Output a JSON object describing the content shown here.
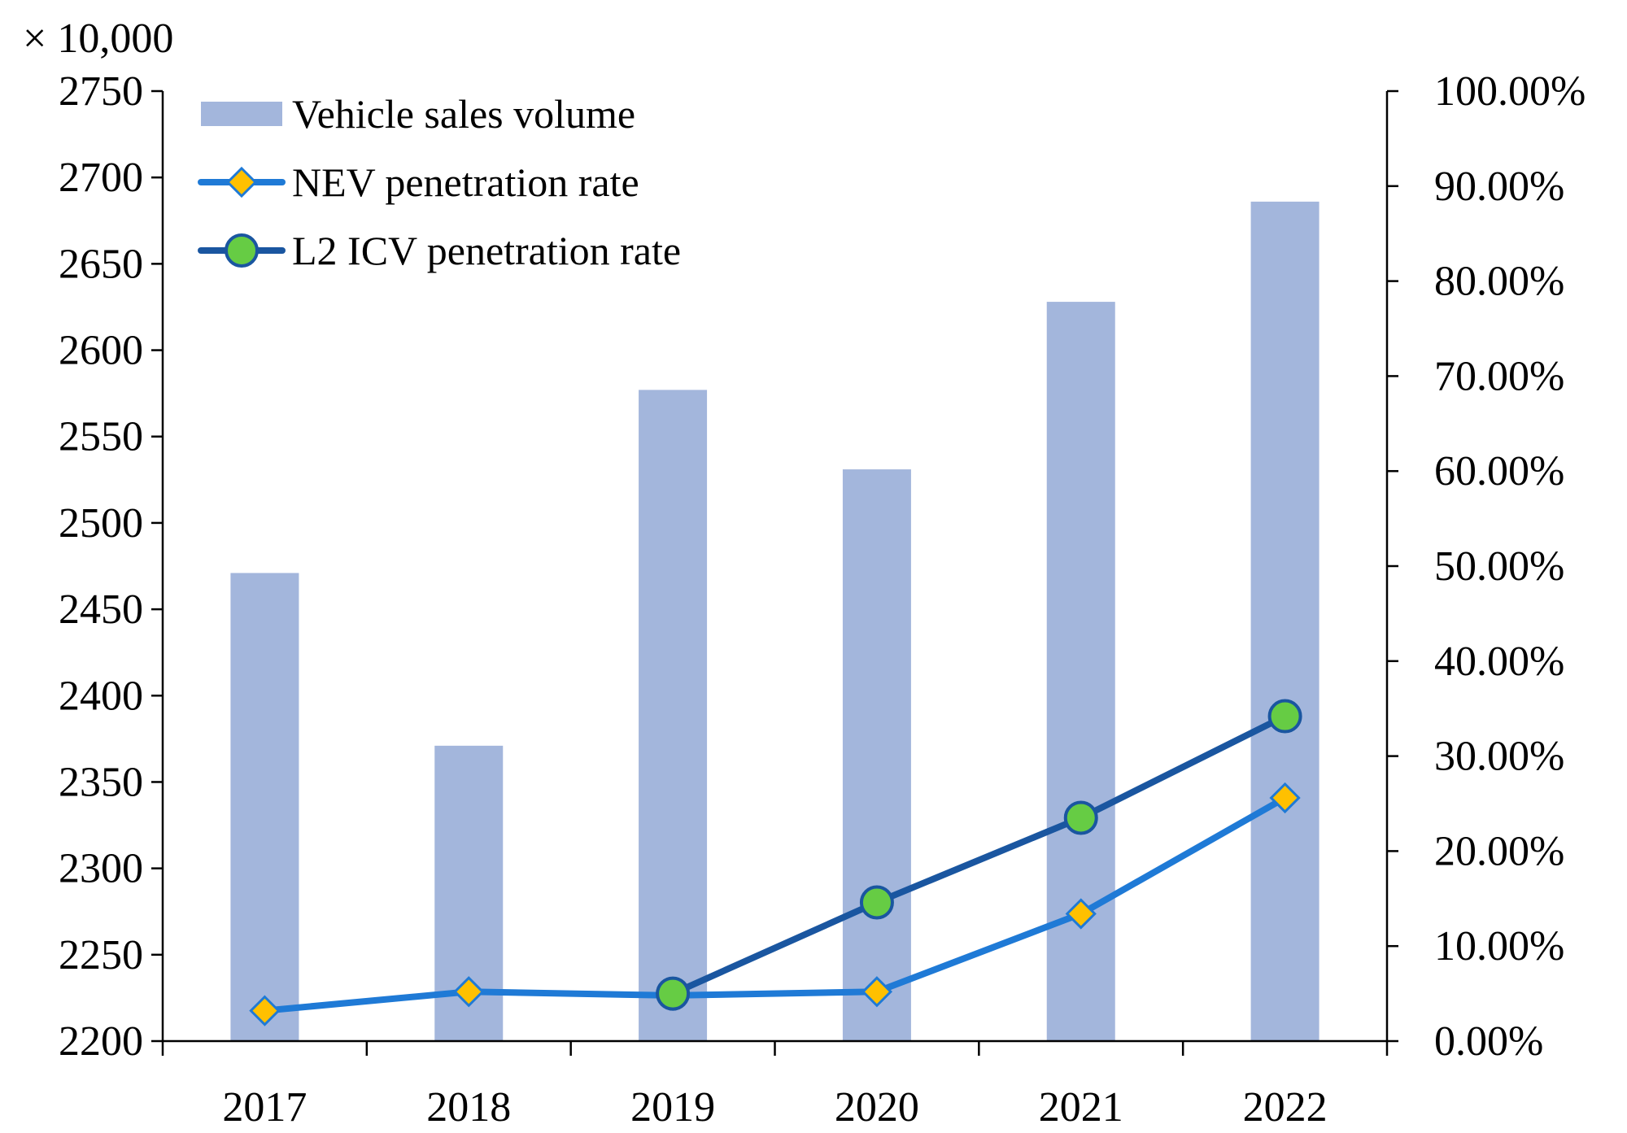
{
  "chart_data": {
    "type": "bar",
    "title": "",
    "xlabel": "",
    "ylabel": "",
    "y_unit_label": "× 10,000",
    "categories": [
      "2017",
      "2018",
      "2019",
      "2020",
      "2021",
      "2022"
    ],
    "ylim": [
      2200,
      2750
    ],
    "yticks": [
      2200,
      2250,
      2300,
      2350,
      2400,
      2450,
      2500,
      2550,
      2600,
      2650,
      2700,
      2750
    ],
    "y2lim": [
      0,
      100
    ],
    "y2ticks": [
      "0.00%",
      "10.00%",
      "20.00%",
      "30.00%",
      "40.00%",
      "50.00%",
      "60.00%",
      "70.00%",
      "80.00%",
      "90.00%",
      "100.00%"
    ],
    "grid": false,
    "legend_position": "top-left",
    "series": [
      {
        "name": "Vehicle sales volume",
        "type": "bar",
        "axis": "left",
        "color": "#a3b6dc",
        "values": [
          2471,
          2371,
          2577,
          2531,
          2628,
          2686
        ]
      },
      {
        "name": "NEV penetration rate",
        "type": "line",
        "axis": "right",
        "color": "#1f7ad6",
        "marker": "diamond",
        "marker_color": "#ffc000",
        "values": [
          3.2,
          5.2,
          4.8,
          5.2,
          13.4,
          25.6
        ]
      },
      {
        "name": "L2 ICV penetration rate",
        "type": "line",
        "axis": "right",
        "color": "#1a56a0",
        "marker": "circle",
        "marker_color": "#66cc44",
        "values": [
          null,
          null,
          5.0,
          14.6,
          23.5,
          34.2
        ]
      }
    ]
  }
}
